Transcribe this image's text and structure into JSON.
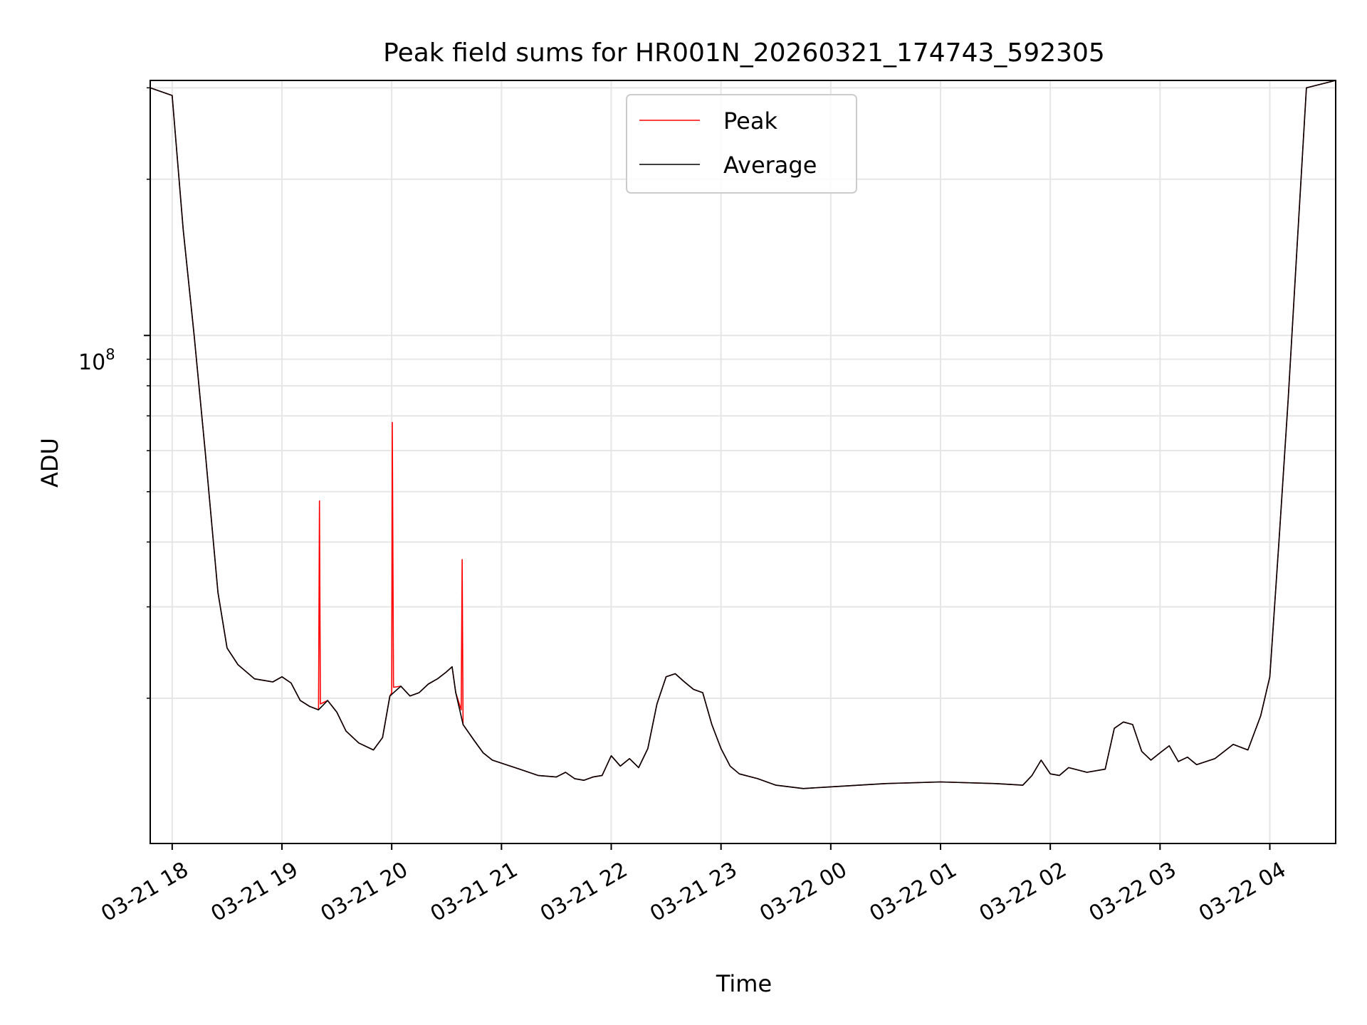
{
  "chart_data": {
    "type": "line",
    "title": "Peak field sums for HR001N_20260321_174743_592305",
    "xlabel": "Time",
    "ylabel": "ADU",
    "y_scale": "log",
    "y_base_label": "10",
    "y_exponent_label": "8",
    "xlim": [
      "2026-03-21 17:48",
      "2026-03-22 04:36"
    ],
    "ylim": [
      10500000,
      310000000
    ],
    "grid": true,
    "legend_position": "upper-center",
    "x_ticks": [
      {
        "time": "2026-03-21 18:00",
        "label": "03-21 18"
      },
      {
        "time": "2026-03-21 19:00",
        "label": "03-21 19"
      },
      {
        "time": "2026-03-21 20:00",
        "label": "03-21 20"
      },
      {
        "time": "2026-03-21 21:00",
        "label": "03-21 21"
      },
      {
        "time": "2026-03-21 22:00",
        "label": "03-21 22"
      },
      {
        "time": "2026-03-21 23:00",
        "label": "03-21 23"
      },
      {
        "time": "2026-03-22 00:00",
        "label": "03-22 00"
      },
      {
        "time": "2026-03-22 01:00",
        "label": "03-22 01"
      },
      {
        "time": "2026-03-22 02:00",
        "label": "03-22 02"
      },
      {
        "time": "2026-03-22 03:00",
        "label": "03-22 03"
      },
      {
        "time": "2026-03-22 04:00",
        "label": "03-22 04"
      }
    ],
    "y_major_ticks": [
      100000000
    ],
    "y_minor_ticks": [
      20000000,
      30000000,
      40000000,
      50000000,
      60000000,
      70000000,
      80000000,
      90000000,
      200000000,
      300000000
    ],
    "series": [
      {
        "name": "Peak",
        "color": "#ff0000",
        "points": [
          [
            "2026-03-21 17:48",
            300000000
          ],
          [
            "2026-03-21 18:00",
            290000000
          ],
          [
            "2026-03-21 18:06",
            160000000
          ],
          [
            "2026-03-21 18:12",
            100000000
          ],
          [
            "2026-03-21 18:18",
            60000000
          ],
          [
            "2026-03-21 18:25",
            32000000
          ],
          [
            "2026-03-21 18:30",
            25000000
          ],
          [
            "2026-03-21 18:36",
            23200000
          ],
          [
            "2026-03-21 18:45",
            21800000
          ],
          [
            "2026-03-21 18:55",
            21500000
          ],
          [
            "2026-03-21 19:00",
            22000000
          ],
          [
            "2026-03-21 19:05",
            21400000
          ],
          [
            "2026-03-21 19:10",
            19800000
          ],
          [
            "2026-03-21 19:15",
            19300000
          ],
          [
            "2026-03-21 19:20",
            19000000
          ],
          [
            "2026-03-21 19:20:30",
            48000000
          ],
          [
            "2026-03-21 19:21",
            19500000
          ],
          [
            "2026-03-21 19:25",
            19800000
          ],
          [
            "2026-03-21 19:30",
            18800000
          ],
          [
            "2026-03-21 19:35",
            17300000
          ],
          [
            "2026-03-21 19:42",
            16400000
          ],
          [
            "2026-03-21 19:50",
            15900000
          ],
          [
            "2026-03-21 19:55",
            16800000
          ],
          [
            "2026-03-21 19:59",
            20200000
          ],
          [
            "2026-03-21 20:00",
            20500000
          ],
          [
            "2026-03-21 20:00:20",
            68000000
          ],
          [
            "2026-03-21 20:01",
            21000000
          ],
          [
            "2026-03-21 20:05",
            21100000
          ],
          [
            "2026-03-21 20:10",
            20200000
          ],
          [
            "2026-03-21 20:15",
            20500000
          ],
          [
            "2026-03-21 20:20",
            21300000
          ],
          [
            "2026-03-21 20:25",
            21800000
          ],
          [
            "2026-03-21 20:30",
            22500000
          ],
          [
            "2026-03-21 20:33",
            23000000
          ],
          [
            "2026-03-21 20:35",
            20500000
          ],
          [
            "2026-03-21 20:38",
            19000000
          ],
          [
            "2026-03-21 20:38:30",
            37000000
          ],
          [
            "2026-03-21 20:39",
            17800000
          ],
          [
            "2026-03-21 20:45",
            16600000
          ],
          [
            "2026-03-21 20:50",
            15700000
          ],
          [
            "2026-03-21 20:55",
            15200000
          ],
          [
            "2026-03-21 21:00",
            15000000
          ],
          [
            "2026-03-21 21:10",
            14600000
          ],
          [
            "2026-03-21 21:20",
            14200000
          ],
          [
            "2026-03-21 21:30",
            14100000
          ],
          [
            "2026-03-21 21:35",
            14400000
          ],
          [
            "2026-03-21 21:40",
            14000000
          ],
          [
            "2026-03-21 21:45",
            13900000
          ],
          [
            "2026-03-21 21:50",
            14100000
          ],
          [
            "2026-03-21 21:55",
            14200000
          ],
          [
            "2026-03-21 22:00",
            15500000
          ],
          [
            "2026-03-21 22:05",
            14800000
          ],
          [
            "2026-03-21 22:10",
            15300000
          ],
          [
            "2026-03-21 22:15",
            14700000
          ],
          [
            "2026-03-21 22:20",
            16000000
          ],
          [
            "2026-03-21 22:25",
            19500000
          ],
          [
            "2026-03-21 22:30",
            22000000
          ],
          [
            "2026-03-21 22:35",
            22300000
          ],
          [
            "2026-03-21 22:40",
            21500000
          ],
          [
            "2026-03-21 22:45",
            20800000
          ],
          [
            "2026-03-21 22:50",
            20500000
          ],
          [
            "2026-03-21 22:55",
            17800000
          ],
          [
            "2026-03-21 23:00",
            16000000
          ],
          [
            "2026-03-21 23:05",
            14800000
          ],
          [
            "2026-03-21 23:10",
            14300000
          ],
          [
            "2026-03-21 23:20",
            14000000
          ],
          [
            "2026-03-21 23:30",
            13600000
          ],
          [
            "2026-03-21 23:45",
            13400000
          ],
          [
            "2026-03-22 00:00",
            13500000
          ],
          [
            "2026-03-22 00:30",
            13700000
          ],
          [
            "2026-03-22 01:00",
            13800000
          ],
          [
            "2026-03-22 01:30",
            13700000
          ],
          [
            "2026-03-22 01:45",
            13600000
          ],
          [
            "2026-03-22 01:50",
            14200000
          ],
          [
            "2026-03-22 01:55",
            15200000
          ],
          [
            "2026-03-22 02:00",
            14300000
          ],
          [
            "2026-03-22 02:05",
            14200000
          ],
          [
            "2026-03-22 02:10",
            14700000
          ],
          [
            "2026-03-22 02:20",
            14400000
          ],
          [
            "2026-03-22 02:30",
            14600000
          ],
          [
            "2026-03-22 02:35",
            17500000
          ],
          [
            "2026-03-22 02:40",
            18000000
          ],
          [
            "2026-03-22 02:45",
            17800000
          ],
          [
            "2026-03-22 02:50",
            15800000
          ],
          [
            "2026-03-22 02:55",
            15200000
          ],
          [
            "2026-03-22 03:00",
            15700000
          ],
          [
            "2026-03-22 03:05",
            16200000
          ],
          [
            "2026-03-22 03:10",
            15100000
          ],
          [
            "2026-03-22 03:15",
            15400000
          ],
          [
            "2026-03-22 03:20",
            14900000
          ],
          [
            "2026-03-22 03:30",
            15300000
          ],
          [
            "2026-03-22 03:40",
            16300000
          ],
          [
            "2026-03-22 03:48",
            15900000
          ],
          [
            "2026-03-22 03:55",
            18500000
          ],
          [
            "2026-03-22 04:00",
            22000000
          ],
          [
            "2026-03-22 04:05",
            40000000
          ],
          [
            "2026-03-22 04:10",
            75000000
          ],
          [
            "2026-03-22 04:15",
            150000000
          ],
          [
            "2026-03-22 04:20",
            300000000
          ],
          [
            "2026-03-22 04:36",
            320000000
          ]
        ]
      },
      {
        "name": "Average",
        "color": "#000000",
        "points": [
          [
            "2026-03-21 17:48",
            300000000
          ],
          [
            "2026-03-21 18:00",
            290000000
          ],
          [
            "2026-03-21 18:06",
            160000000
          ],
          [
            "2026-03-21 18:12",
            100000000
          ],
          [
            "2026-03-21 18:18",
            60000000
          ],
          [
            "2026-03-21 18:25",
            32000000
          ],
          [
            "2026-03-21 18:30",
            25000000
          ],
          [
            "2026-03-21 18:36",
            23200000
          ],
          [
            "2026-03-21 18:45",
            21800000
          ],
          [
            "2026-03-21 18:55",
            21500000
          ],
          [
            "2026-03-21 19:00",
            22000000
          ],
          [
            "2026-03-21 19:05",
            21400000
          ],
          [
            "2026-03-21 19:10",
            19800000
          ],
          [
            "2026-03-21 19:15",
            19300000
          ],
          [
            "2026-03-21 19:20",
            19000000
          ],
          [
            "2026-03-21 19:25",
            19800000
          ],
          [
            "2026-03-21 19:30",
            18800000
          ],
          [
            "2026-03-21 19:35",
            17300000
          ],
          [
            "2026-03-21 19:42",
            16400000
          ],
          [
            "2026-03-21 19:50",
            15900000
          ],
          [
            "2026-03-21 19:55",
            16800000
          ],
          [
            "2026-03-21 19:59",
            20200000
          ],
          [
            "2026-03-21 20:05",
            21100000
          ],
          [
            "2026-03-21 20:10",
            20200000
          ],
          [
            "2026-03-21 20:15",
            20500000
          ],
          [
            "2026-03-21 20:20",
            21300000
          ],
          [
            "2026-03-21 20:25",
            21800000
          ],
          [
            "2026-03-21 20:30",
            22500000
          ],
          [
            "2026-03-21 20:33",
            23000000
          ],
          [
            "2026-03-21 20:35",
            20500000
          ],
          [
            "2026-03-21 20:39",
            17800000
          ],
          [
            "2026-03-21 20:45",
            16600000
          ],
          [
            "2026-03-21 20:50",
            15700000
          ],
          [
            "2026-03-21 20:55",
            15200000
          ],
          [
            "2026-03-21 21:00",
            15000000
          ],
          [
            "2026-03-21 21:10",
            14600000
          ],
          [
            "2026-03-21 21:20",
            14200000
          ],
          [
            "2026-03-21 21:30",
            14100000
          ],
          [
            "2026-03-21 21:35",
            14400000
          ],
          [
            "2026-03-21 21:40",
            14000000
          ],
          [
            "2026-03-21 21:45",
            13900000
          ],
          [
            "2026-03-21 21:50",
            14100000
          ],
          [
            "2026-03-21 21:55",
            14200000
          ],
          [
            "2026-03-21 22:00",
            15500000
          ],
          [
            "2026-03-21 22:05",
            14800000
          ],
          [
            "2026-03-21 22:10",
            15300000
          ],
          [
            "2026-03-21 22:15",
            14700000
          ],
          [
            "2026-03-21 22:20",
            16000000
          ],
          [
            "2026-03-21 22:25",
            19500000
          ],
          [
            "2026-03-21 22:30",
            22000000
          ],
          [
            "2026-03-21 22:35",
            22300000
          ],
          [
            "2026-03-21 22:40",
            21500000
          ],
          [
            "2026-03-21 22:45",
            20800000
          ],
          [
            "2026-03-21 22:50",
            20500000
          ],
          [
            "2026-03-21 22:55",
            17800000
          ],
          [
            "2026-03-21 23:00",
            16000000
          ],
          [
            "2026-03-21 23:05",
            14800000
          ],
          [
            "2026-03-21 23:10",
            14300000
          ],
          [
            "2026-03-21 23:20",
            14000000
          ],
          [
            "2026-03-21 23:30",
            13600000
          ],
          [
            "2026-03-21 23:45",
            13400000
          ],
          [
            "2026-03-22 00:00",
            13500000
          ],
          [
            "2026-03-22 00:30",
            13700000
          ],
          [
            "2026-03-22 01:00",
            13800000
          ],
          [
            "2026-03-22 01:30",
            13700000
          ],
          [
            "2026-03-22 01:45",
            13600000
          ],
          [
            "2026-03-22 01:50",
            14200000
          ],
          [
            "2026-03-22 01:55",
            15200000
          ],
          [
            "2026-03-22 02:00",
            14300000
          ],
          [
            "2026-03-22 02:05",
            14200000
          ],
          [
            "2026-03-22 02:10",
            14700000
          ],
          [
            "2026-03-22 02:20",
            14400000
          ],
          [
            "2026-03-22 02:30",
            14600000
          ],
          [
            "2026-03-22 02:35",
            17500000
          ],
          [
            "2026-03-22 02:40",
            18000000
          ],
          [
            "2026-03-22 02:45",
            17800000
          ],
          [
            "2026-03-22 02:50",
            15800000
          ],
          [
            "2026-03-22 02:55",
            15200000
          ],
          [
            "2026-03-22 03:00",
            15700000
          ],
          [
            "2026-03-22 03:05",
            16200000
          ],
          [
            "2026-03-22 03:10",
            15100000
          ],
          [
            "2026-03-22 03:15",
            15400000
          ],
          [
            "2026-03-22 03:20",
            14900000
          ],
          [
            "2026-03-22 03:30",
            15300000
          ],
          [
            "2026-03-22 03:40",
            16300000
          ],
          [
            "2026-03-22 03:48",
            15900000
          ],
          [
            "2026-03-22 03:55",
            18500000
          ],
          [
            "2026-03-22 04:00",
            22000000
          ],
          [
            "2026-03-22 04:05",
            40000000
          ],
          [
            "2026-03-22 04:10",
            75000000
          ],
          [
            "2026-03-22 04:15",
            150000000
          ],
          [
            "2026-03-22 04:20",
            300000000
          ],
          [
            "2026-03-22 04:36",
            320000000
          ]
        ]
      }
    ]
  }
}
